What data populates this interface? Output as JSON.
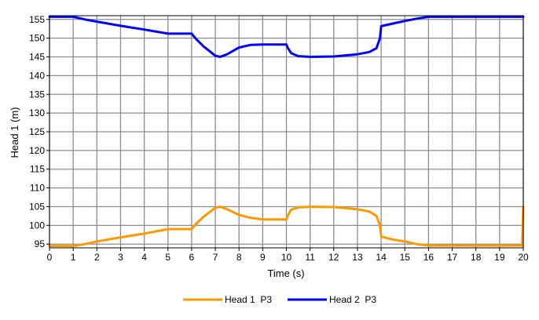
{
  "colors": {
    "background": "#ffffff",
    "plot_background": "#ffffff",
    "grid": "#8c8c8c",
    "axis": "#000000"
  },
  "chart_data": {
    "type": "line",
    "title": "",
    "xlabel": "Time (s)",
    "ylabel": "Head 1 (m)",
    "xlim": [
      0,
      20
    ],
    "ylim": [
      94,
      156
    ],
    "x_ticks": [
      0,
      1,
      2,
      3,
      4,
      5,
      6,
      7,
      8,
      9,
      10,
      11,
      12,
      13,
      14,
      15,
      16,
      17,
      18,
      19,
      20
    ],
    "x_tick_labels": [
      "0",
      "1",
      "2",
      "3",
      "4",
      "5",
      "6",
      "7",
      "8",
      "9",
      "10",
      "11",
      "12",
      "13",
      "14",
      "15",
      "16",
      "17",
      "18",
      "19",
      "20"
    ],
    "y_ticks": [
      95,
      100,
      105,
      110,
      115,
      120,
      125,
      130,
      135,
      140,
      145,
      150,
      155
    ],
    "y_tick_labels": [
      "95",
      "100",
      "105",
      "110",
      "115",
      "120",
      "125",
      "130",
      "135",
      "140",
      "145",
      "150",
      "155"
    ],
    "grid": true,
    "legend_position": "bottom-center",
    "series": [
      {
        "name": "Head 1  P3",
        "color": "#ff9900",
        "x": [
          0,
          1.0,
          1.5,
          2.0,
          3.0,
          4.0,
          5.0,
          6.0,
          6.2,
          6.5,
          7.0,
          7.2,
          7.5,
          8.0,
          8.5,
          9.0,
          10.0,
          10.05,
          10.2,
          10.5,
          11.0,
          12.0,
          13.0,
          13.5,
          13.8,
          13.95,
          14.0,
          14.5,
          15.0,
          15.5,
          16.0,
          17.0,
          18.0,
          19.0,
          19.95,
          20.0
        ],
        "y": [
          94.5,
          94.5,
          95.0,
          95.7,
          96.8,
          97.8,
          99.0,
          99.0,
          100.5,
          102.3,
          104.7,
          105.0,
          104.3,
          102.8,
          102.0,
          101.6,
          101.6,
          102.5,
          104.2,
          104.8,
          105.0,
          104.9,
          104.3,
          103.7,
          102.5,
          100.0,
          97.0,
          96.2,
          95.7,
          95.0,
          94.6,
          94.6,
          94.6,
          94.6,
          94.6,
          105.0
        ]
      },
      {
        "name": "Head 2  P3",
        "color": "#0000ff",
        "x": [
          0,
          1.0,
          1.5,
          2.0,
          3.0,
          4.0,
          5.0,
          6.0,
          6.2,
          6.5,
          7.0,
          7.2,
          7.5,
          8.0,
          8.5,
          9.0,
          10.0,
          10.05,
          10.2,
          10.5,
          11.0,
          12.0,
          13.0,
          13.5,
          13.8,
          13.95,
          14.0,
          14.5,
          15.0,
          15.5,
          16.0,
          17.0,
          18.0,
          19.0,
          20.0
        ],
        "y": [
          155.7,
          155.7,
          155.0,
          154.4,
          153.3,
          152.3,
          151.2,
          151.2,
          149.7,
          147.8,
          145.3,
          145.0,
          145.7,
          147.5,
          148.2,
          148.3,
          148.3,
          147.5,
          146.0,
          145.2,
          145.0,
          145.1,
          145.7,
          146.3,
          147.3,
          150.0,
          153.2,
          153.9,
          154.6,
          155.2,
          155.7,
          155.7,
          155.7,
          155.7,
          155.7
        ]
      }
    ]
  }
}
